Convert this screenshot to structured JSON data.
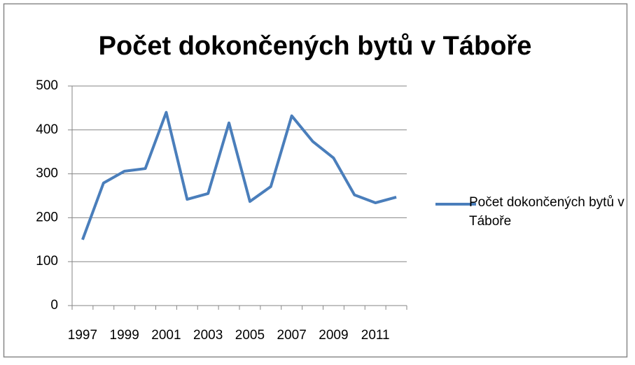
{
  "chart_data": {
    "type": "line",
    "title": "Počet dokončených bytů v Táboře",
    "categories": [
      "1997",
      null,
      "1999",
      null,
      "2001",
      null,
      "2003",
      null,
      "2005",
      null,
      "2007",
      null,
      "2009",
      null,
      "2011",
      null
    ],
    "series": [
      {
        "name": "Počet dokončených bytů v Táboře",
        "color": "#4a7ebb",
        "values": [
          150,
          279,
          306,
          312,
          440,
          242,
          255,
          416,
          237,
          271,
          432,
          374,
          336,
          252,
          234,
          247
        ]
      }
    ],
    "ylim": [
      0,
      500
    ],
    "yticks": [
      0,
      100,
      200,
      300,
      400,
      500
    ],
    "grid": true,
    "legend": "right"
  }
}
